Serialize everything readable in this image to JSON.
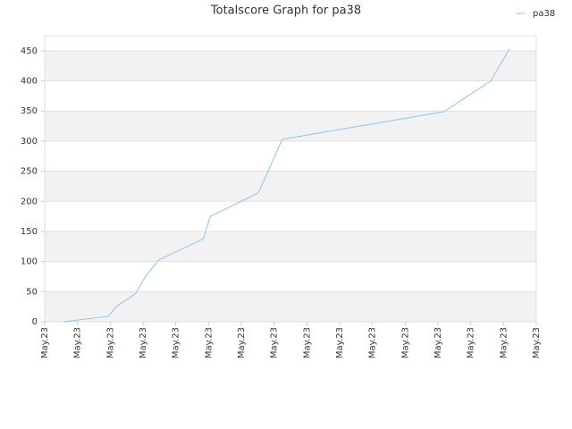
{
  "chart_data": {
    "type": "line",
    "title": "Totalscore Graph for pa38",
    "x": [
      0.57,
      1.94,
      2.18,
      2.78,
      3.05,
      3.46,
      4.85,
      5.05,
      6.52,
      7.25,
      12.19,
      13.61,
      14.18
    ],
    "series": [
      {
        "name": "pa38",
        "color": "#8ec4ee",
        "values": [
          0,
          9,
          25,
          47,
          73,
          102,
          138,
          175,
          214,
          303,
          349,
          400,
          453
        ]
      }
    ],
    "xlim": [
      0,
      15
    ],
    "xticks": [
      {
        "value": 0,
        "label": "May.23"
      },
      {
        "value": 1,
        "label": "May.23"
      },
      {
        "value": 2,
        "label": "May.23"
      },
      {
        "value": 3,
        "label": "May.23"
      },
      {
        "value": 4,
        "label": "May.23"
      },
      {
        "value": 5,
        "label": "May.23"
      },
      {
        "value": 6,
        "label": "May.23"
      },
      {
        "value": 7,
        "label": "May.23"
      },
      {
        "value": 8,
        "label": "May.23"
      },
      {
        "value": 9,
        "label": "May.23"
      },
      {
        "value": 10,
        "label": "May.23"
      },
      {
        "value": 11,
        "label": "May.23"
      },
      {
        "value": 12,
        "label": "May.23"
      },
      {
        "value": 13,
        "label": "May.23"
      },
      {
        "value": 14,
        "label": "May.23"
      },
      {
        "value": 15,
        "label": "May.23"
      }
    ],
    "ylim": [
      0,
      475
    ],
    "yticks": [
      0,
      50,
      100,
      150,
      200,
      250,
      300,
      350,
      400,
      450
    ],
    "grid": true,
    "legend": "top-right"
  }
}
